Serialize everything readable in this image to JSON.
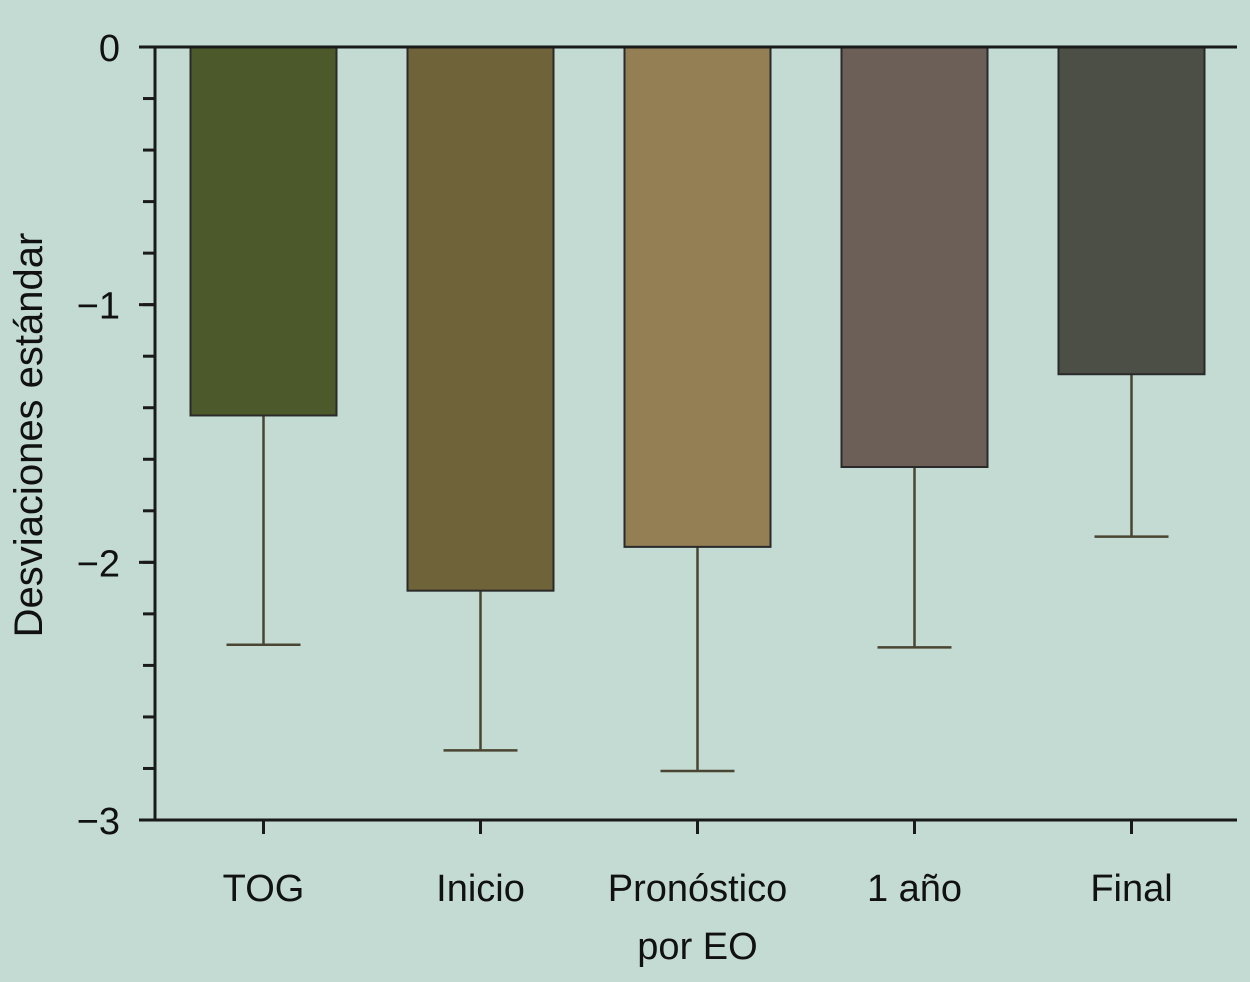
{
  "chart_data": {
    "type": "bar",
    "title": "",
    "xlabel": "",
    "ylabel": "Desviaciones estándar",
    "ylim": [
      -3,
      0
    ],
    "yticks": [
      0,
      -1,
      -2,
      -3
    ],
    "ytick_labels": [
      "0",
      "−1",
      "−2",
      "−3"
    ],
    "minor_tick_step": 0.2,
    "grid": false,
    "categories": [
      "TOG",
      "Inicio",
      "Pronóstico por EO",
      "1 año",
      "Final"
    ],
    "category_lines": [
      [
        "TOG"
      ],
      [
        "Inicio"
      ],
      [
        "Pronóstico",
        "por EO"
      ],
      [
        "1 año"
      ],
      [
        "Final"
      ]
    ],
    "values": [
      -1.43,
      -2.11,
      -1.94,
      -1.63,
      -1.27
    ],
    "error_bars": [
      -2.32,
      -2.73,
      -2.81,
      -2.33,
      -1.9
    ],
    "colors": [
      "#4c5a2b",
      "#6f6339",
      "#947e54",
      "#6c5f57",
      "#4c4f45"
    ],
    "error_bar_color": "#4a4533",
    "axis_color": "#1a1a1a"
  }
}
